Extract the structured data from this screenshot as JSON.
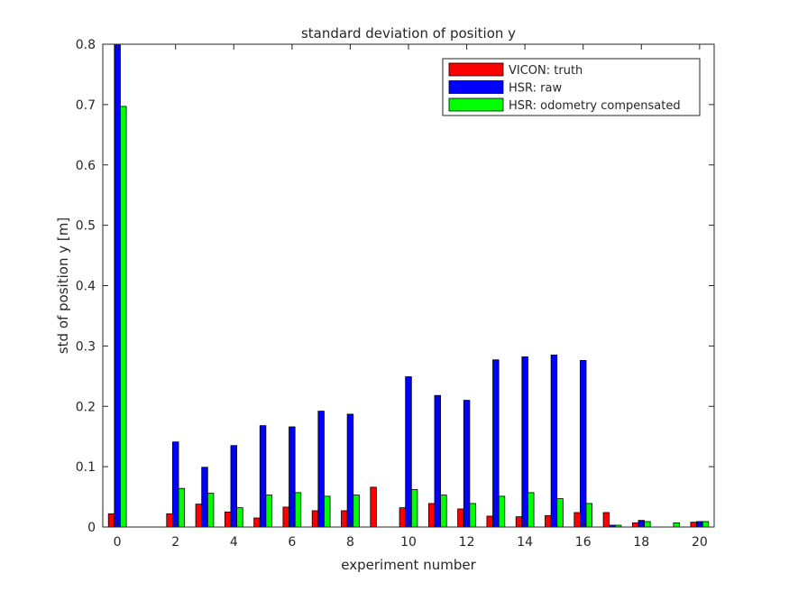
{
  "chart_data": {
    "type": "bar",
    "title": "standard deviation of position y",
    "xlabel": "experiment number",
    "ylabel": "std of position y [m]",
    "xlim": [
      -0.5,
      20.5
    ],
    "ylim": [
      0,
      0.8
    ],
    "xticks": [
      0,
      2,
      4,
      6,
      8,
      10,
      12,
      14,
      16,
      18,
      20
    ],
    "yticks": [
      0,
      0.1,
      0.2,
      0.3,
      0.4,
      0.5,
      0.6,
      0.7,
      0.8
    ],
    "ytick_labels": [
      "0",
      "0.1",
      "0.2",
      "0.3",
      "0.4",
      "0.5",
      "0.6",
      "0.7",
      "0.8"
    ],
    "grid": false,
    "legend_position": "top-right",
    "x": [
      0,
      1,
      2,
      3,
      4,
      5,
      6,
      7,
      8,
      9,
      10,
      11,
      12,
      13,
      14,
      15,
      16,
      17,
      18,
      19,
      20
    ],
    "series": [
      {
        "name": "VICON: truth",
        "color": "#ff0000",
        "values": [
          0.022,
          0,
          0.022,
          0.038,
          0.025,
          0.015,
          0.033,
          0.027,
          0.027,
          0.066,
          0.032,
          0.039,
          0.03,
          0.018,
          0.017,
          0.019,
          0.024,
          0.024,
          0.007,
          0,
          0.008
        ]
      },
      {
        "name": "HSR: raw",
        "color": "#0000ff",
        "values": [
          0.8,
          0,
          0.141,
          0.099,
          0.135,
          0.168,
          0.166,
          0.192,
          0.187,
          0,
          0.249,
          0.218,
          0.21,
          0.277,
          0.282,
          0.285,
          0.276,
          0.003,
          0.011,
          0,
          0.009
        ]
      },
      {
        "name": "HSR: odometry compensated",
        "color": "#00ff00",
        "values": [
          0.697,
          0,
          0.064,
          0.056,
          0.032,
          0.053,
          0.057,
          0.051,
          0.053,
          0,
          0.062,
          0.053,
          0.039,
          0.051,
          0.057,
          0.047,
          0.039,
          0.003,
          0.009,
          0.007,
          0.009
        ]
      }
    ]
  }
}
